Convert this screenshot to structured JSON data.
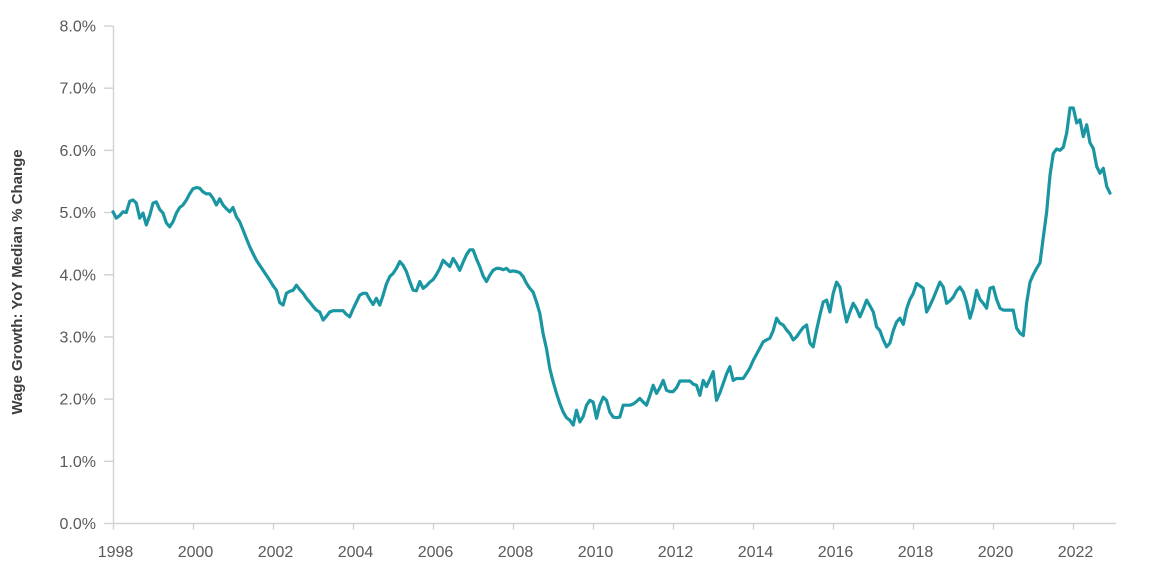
{
  "chart_data": {
    "type": "line",
    "title": "",
    "xlabel": "",
    "ylabel": "Wage Growth: YoY Median % Change",
    "frequency": "monthly",
    "x_range": [
      "1998-01",
      "2022-12"
    ],
    "ylim": [
      0,
      8
    ],
    "grid": false,
    "legend": "none",
    "y_tick_labels": [
      "0.0%",
      "1.0%",
      "2.0%",
      "3.0%",
      "4.0%",
      "5.0%",
      "6.0%",
      "7.0%",
      "8.0%"
    ],
    "x_tick_labels": [
      "1998",
      "2000",
      "2002",
      "2004",
      "2006",
      "2008",
      "2010",
      "2012",
      "2014",
      "2016",
      "2018",
      "2020",
      "2022"
    ],
    "series": [
      {
        "name": "Wage Growth: YoY Median % Change",
        "color": "#1A96A2",
        "values": [
          5.01,
          4.91,
          4.95,
          5.01,
          5.0,
          5.18,
          5.2,
          5.15,
          4.91,
          4.99,
          4.8,
          4.95,
          5.15,
          5.17,
          5.05,
          4.99,
          4.83,
          4.77,
          4.85,
          4.99,
          5.08,
          5.12,
          5.2,
          5.3,
          5.38,
          5.4,
          5.39,
          5.33,
          5.3,
          5.3,
          5.23,
          5.12,
          5.22,
          5.12,
          5.06,
          5.01,
          5.08,
          4.93,
          4.85,
          4.72,
          4.58,
          4.45,
          4.34,
          4.23,
          4.15,
          4.07,
          3.99,
          3.91,
          3.82,
          3.75,
          3.55,
          3.51,
          3.7,
          3.73,
          3.75,
          3.83,
          3.76,
          3.7,
          3.62,
          3.56,
          3.49,
          3.43,
          3.4,
          3.27,
          3.33,
          3.4,
          3.42,
          3.42,
          3.42,
          3.42,
          3.36,
          3.32,
          3.45,
          3.56,
          3.67,
          3.7,
          3.7,
          3.6,
          3.52,
          3.62,
          3.51,
          3.67,
          3.85,
          3.97,
          4.02,
          4.1,
          4.21,
          4.15,
          4.05,
          3.89,
          3.75,
          3.74,
          3.89,
          3.78,
          3.82,
          3.88,
          3.92,
          4.0,
          4.1,
          4.23,
          4.18,
          4.13,
          4.26,
          4.18,
          4.07,
          4.2,
          4.32,
          4.4,
          4.4,
          4.25,
          4.13,
          3.98,
          3.89,
          3.99,
          4.07,
          4.1,
          4.1,
          4.08,
          4.1,
          4.05,
          4.06,
          4.05,
          4.03,
          3.97,
          3.86,
          3.78,
          3.72,
          3.56,
          3.38,
          3.05,
          2.81,
          2.49,
          2.28,
          2.09,
          1.93,
          1.79,
          1.7,
          1.66,
          1.58,
          1.82,
          1.63,
          1.72,
          1.9,
          1.98,
          1.95,
          1.69,
          1.9,
          2.03,
          1.98,
          1.79,
          1.71,
          1.7,
          1.71,
          1.9,
          1.9,
          1.9,
          1.92,
          1.96,
          2.01,
          1.95,
          1.9,
          2.05,
          2.22,
          2.09,
          2.18,
          2.3,
          2.14,
          2.12,
          2.12,
          2.18,
          2.29,
          2.29,
          2.29,
          2.29,
          2.24,
          2.22,
          2.06,
          2.3,
          2.2,
          2.32,
          2.44,
          1.98,
          2.1,
          2.25,
          2.4,
          2.52,
          2.3,
          2.33,
          2.33,
          2.33,
          2.41,
          2.5,
          2.62,
          2.72,
          2.82,
          2.92,
          2.95,
          2.98,
          3.1,
          3.3,
          3.22,
          3.19,
          3.11,
          3.05,
          2.95,
          3.0,
          3.08,
          3.15,
          3.19,
          2.9,
          2.84,
          3.11,
          3.35,
          3.56,
          3.59,
          3.4,
          3.7,
          3.88,
          3.8,
          3.5,
          3.24,
          3.4,
          3.54,
          3.45,
          3.32,
          3.45,
          3.59,
          3.5,
          3.4,
          3.16,
          3.1,
          2.95,
          2.84,
          2.9,
          3.1,
          3.24,
          3.3,
          3.2,
          3.45,
          3.6,
          3.7,
          3.86,
          3.82,
          3.78,
          3.4,
          3.5,
          3.62,
          3.75,
          3.88,
          3.8,
          3.54,
          3.58,
          3.64,
          3.74,
          3.8,
          3.72,
          3.55,
          3.3,
          3.48,
          3.75,
          3.6,
          3.54,
          3.46,
          3.78,
          3.8,
          3.6,
          3.46,
          3.43,
          3.43,
          3.43,
          3.43,
          3.14,
          3.06,
          3.02,
          3.54,
          3.88,
          4.0,
          4.1,
          4.19,
          4.6,
          5.0,
          5.6,
          5.95,
          6.02,
          6.0,
          6.05,
          6.28,
          6.68,
          6.68,
          6.44,
          6.49,
          6.22,
          6.41,
          6.12,
          6.03,
          5.74,
          5.63,
          5.71,
          5.42,
          5.31
        ]
      }
    ]
  },
  "style": {
    "line_color": "#1A96A2",
    "axis_color": "#D2D2D2",
    "tick_label_color": "#595959",
    "axis_title_color": "#3F3F3F",
    "background": "#FFFFFF"
  }
}
